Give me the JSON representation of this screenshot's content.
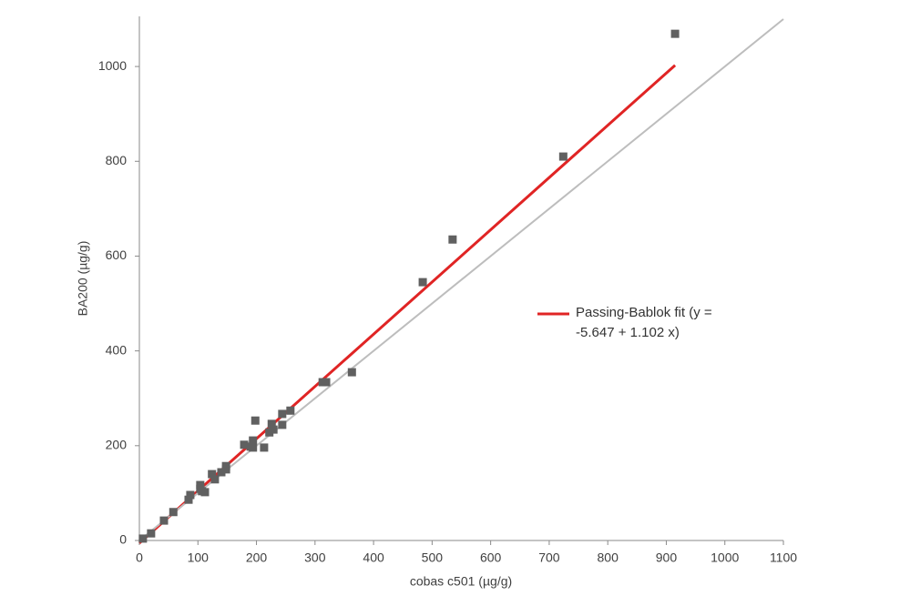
{
  "chart_data": {
    "type": "scatter",
    "xlabel": "cobas c501 (µg/g)",
    "ylabel": "BA200 (µg/g)",
    "xlim": [
      0,
      1100
    ],
    "ylim": [
      0,
      1100
    ],
    "xticks": [
      0,
      100,
      200,
      300,
      400,
      500,
      600,
      700,
      800,
      900,
      1000,
      1100
    ],
    "yticks": [
      0,
      200,
      400,
      600,
      800,
      1000
    ],
    "grid": false,
    "legend": "right",
    "series": [
      {
        "type": "scatter",
        "marker": "square",
        "color": "#606060",
        "x": [
          6,
          20,
          42,
          58,
          84,
          87,
          104,
          104,
          107,
          112,
          124,
          129,
          140,
          148,
          148,
          179,
          190,
          194,
          198,
          194,
          213,
          222,
          226,
          229,
          244,
          244,
          258,
          313,
          319,
          363,
          484,
          535,
          724,
          915
        ],
        "values": [
          4,
          15,
          42,
          60,
          86,
          96,
          117,
          109,
          104,
          102,
          140,
          129,
          144,
          157,
          150,
          202,
          198,
          211,
          253,
          196,
          196,
          228,
          246,
          234,
          244,
          267,
          274,
          334,
          334,
          355,
          545,
          635,
          810,
          1069
        ]
      },
      {
        "type": "line",
        "name": "Passing-Bablok fit (y = -5.647 + 1.102 x)",
        "color": "#e02424",
        "x": [
          0,
          915
        ],
        "values": [
          -5.647,
          1002.68
        ]
      },
      {
        "type": "line",
        "color": "#bdbdbd",
        "x": [
          0,
          1100
        ],
        "values": [
          0,
          1100
        ]
      }
    ]
  }
}
